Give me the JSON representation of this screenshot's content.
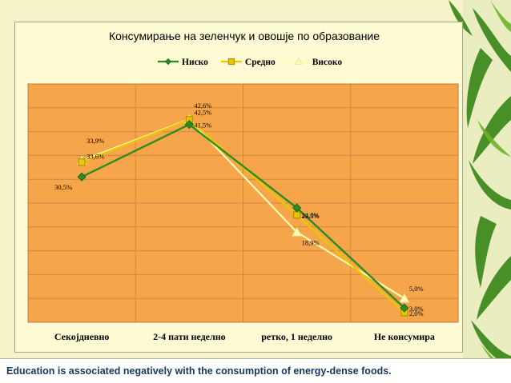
{
  "chart_data": {
    "type": "line",
    "title": "Консумирање на зеленчук и овошје по образование",
    "xlabel": "",
    "ylabel": "",
    "ylim": [
      0,
      50
    ],
    "grid": true,
    "legend": "top",
    "categories": [
      "Секојдневно",
      "2-4 пати неделно",
      "ретко, 1 неделно",
      "Не консумира"
    ],
    "series": [
      {
        "name": "Ниско",
        "values": [
          30.5,
          41.5,
          24.0,
          3.0
        ],
        "labels": [
          "30,5%",
          "41,5%",
          "24,0%",
          "3,0%"
        ],
        "color": "#2e8b1e",
        "marker": "diamond"
      },
      {
        "name": "Средно",
        "values": [
          33.6,
          42.5,
          22.5,
          2.0
        ],
        "labels": [
          "33,6%",
          "42,5%",
          "22,5%",
          "2,0%"
        ],
        "color": "#e8c800",
        "marker": "square"
      },
      {
        "name": "Високо",
        "values": [
          33.9,
          42.6,
          18.9,
          5.0
        ],
        "labels": [
          "33,9%",
          "42,6%",
          "18,9%",
          "5,0%"
        ],
        "color": "#fffbb0",
        "marker": "triangle"
      }
    ],
    "colors": {
      "plot_background": "#f7a54a",
      "gridline": "#cc8a45",
      "frame_background": "#fdfbd3"
    }
  },
  "caption": "Education is associated negatively with the consumption of energy-dense foods."
}
